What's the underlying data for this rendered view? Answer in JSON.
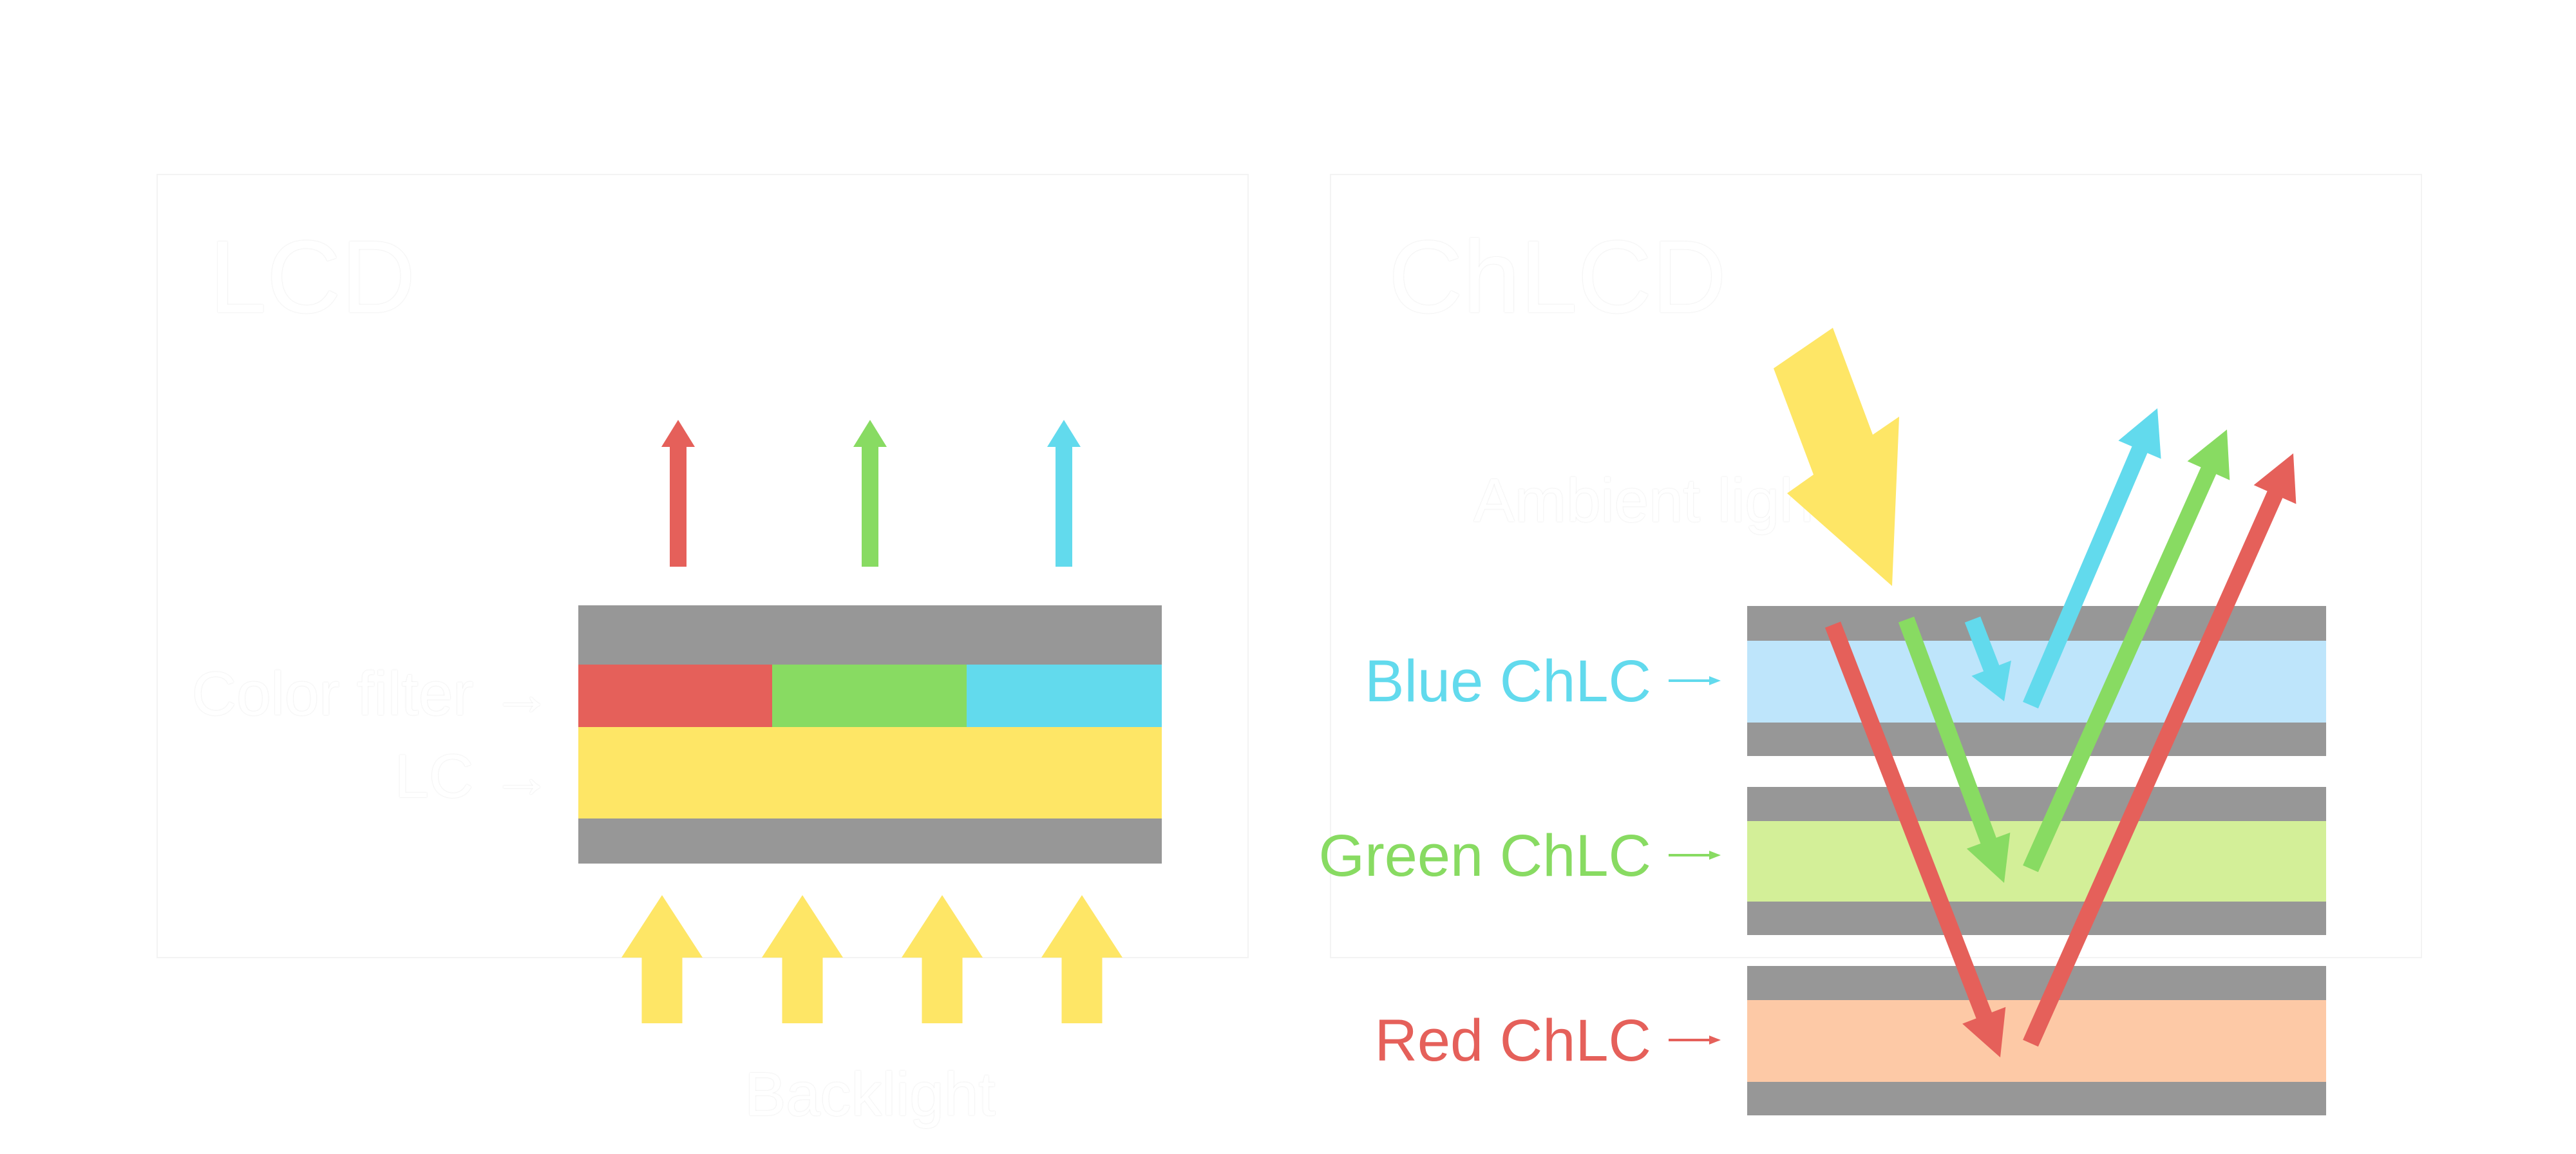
{
  "left_panel": {
    "title": "LCD",
    "labels": {
      "color_filter": "Color filter →",
      "lc": "LC →",
      "backlight": "Backlight"
    }
  },
  "right_panel": {
    "title": "ChLCD",
    "ambient_light": "Ambient light",
    "layers": [
      {
        "label": "Blue ChLC",
        "color": "#62DAED",
        "fill": "#BEE5FB"
      },
      {
        "label": "Green ChLC",
        "color": "#88DB62",
        "fill": "#D3EF98"
      },
      {
        "label": "Red ChLC",
        "color": "#E5605A",
        "fill": "#FDC9A6"
      }
    ]
  },
  "colors": {
    "red": "#E5605A",
    "green": "#88DB62",
    "cyan": "#62DAED",
    "yellow": "#FEE666",
    "substrate_gray": "#979797"
  }
}
